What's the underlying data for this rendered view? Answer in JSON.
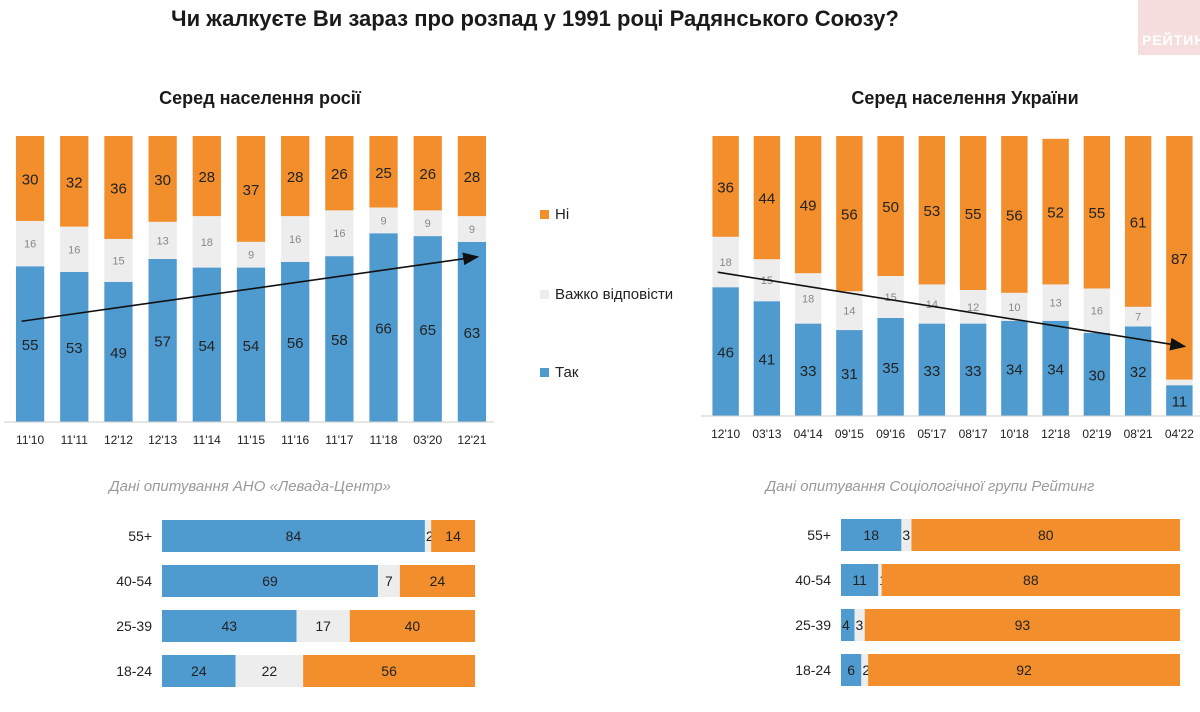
{
  "title": "Чи жалкуєте Ви зараз про розпад у 1991 році Радянського Союзу?",
  "logo_text": "РЕЙТИНГ",
  "colors": {
    "yes": "#4f9bd0",
    "hard": "#ededed",
    "no": "#f28e2b"
  },
  "legend": {
    "no": "Ні",
    "hard": "Важко відповісти",
    "yes": "Так"
  },
  "sources": {
    "left": "Дані опитування АНО «Левада-Центр»",
    "right": "Дані опитування Соціологічної групи Рейтинг"
  },
  "chart_data": [
    {
      "type": "bar",
      "stacked": true,
      "title": "Серед населення росії",
      "categories": [
        "11'10",
        "11'11",
        "12'12",
        "12'13",
        "11'14",
        "11'15",
        "11'16",
        "11'17",
        "11'18",
        "03'20",
        "12'21"
      ],
      "series": [
        {
          "name": "Так",
          "values": [
            55,
            53,
            49,
            57,
            54,
            54,
            56,
            58,
            66,
            65,
            63
          ]
        },
        {
          "name": "Важко відповісти",
          "values": [
            16,
            16,
            15,
            13,
            18,
            9,
            16,
            16,
            9,
            9,
            9
          ]
        },
        {
          "name": "Ні",
          "values": [
            30,
            32,
            36,
            30,
            28,
            37,
            28,
            26,
            25,
            26,
            28
          ]
        }
      ],
      "ylim": [
        0,
        100
      ],
      "trend_arrow": "up"
    },
    {
      "type": "bar",
      "stacked": true,
      "title": "Серед населення України",
      "categories": [
        "12'10",
        "03'13",
        "04'14",
        "09'15",
        "09'16",
        "05'17",
        "08'17",
        "10'18",
        "12'18",
        "02'19",
        "08'21",
        "04'22"
      ],
      "series": [
        {
          "name": "Так",
          "values": [
            46,
            41,
            33,
            31,
            35,
            33,
            33,
            34,
            34,
            30,
            32,
            11
          ]
        },
        {
          "name": "Важко відповісти",
          "values": [
            18,
            15,
            18,
            14,
            15,
            14,
            12,
            10,
            13,
            16,
            7,
            2
          ]
        },
        {
          "name": "Ні",
          "values": [
            36,
            44,
            49,
            56,
            50,
            53,
            55,
            56,
            52,
            55,
            61,
            87
          ]
        }
      ],
      "ylim": [
        0,
        100
      ],
      "trend_arrow": "down"
    },
    {
      "type": "bar",
      "orientation": "horizontal",
      "stacked": true,
      "categories": [
        "55+",
        "40-54",
        "25-39",
        "18-24"
      ],
      "series": [
        {
          "name": "Так",
          "values": [
            84,
            69,
            43,
            24
          ]
        },
        {
          "name": "Важко відповісти",
          "values": [
            2,
            7,
            17,
            22
          ]
        },
        {
          "name": "Ні",
          "values": [
            14,
            24,
            40,
            56
          ]
        }
      ]
    },
    {
      "type": "bar",
      "orientation": "horizontal",
      "stacked": true,
      "categories": [
        "55+",
        "40-54",
        "25-39",
        "18-24"
      ],
      "series": [
        {
          "name": "Так",
          "values": [
            18,
            11,
            4,
            6
          ]
        },
        {
          "name": "Важко відповісти",
          "values": [
            3,
            1,
            3,
            2
          ]
        },
        {
          "name": "Ні",
          "values": [
            80,
            88,
            93,
            92
          ]
        }
      ]
    }
  ]
}
